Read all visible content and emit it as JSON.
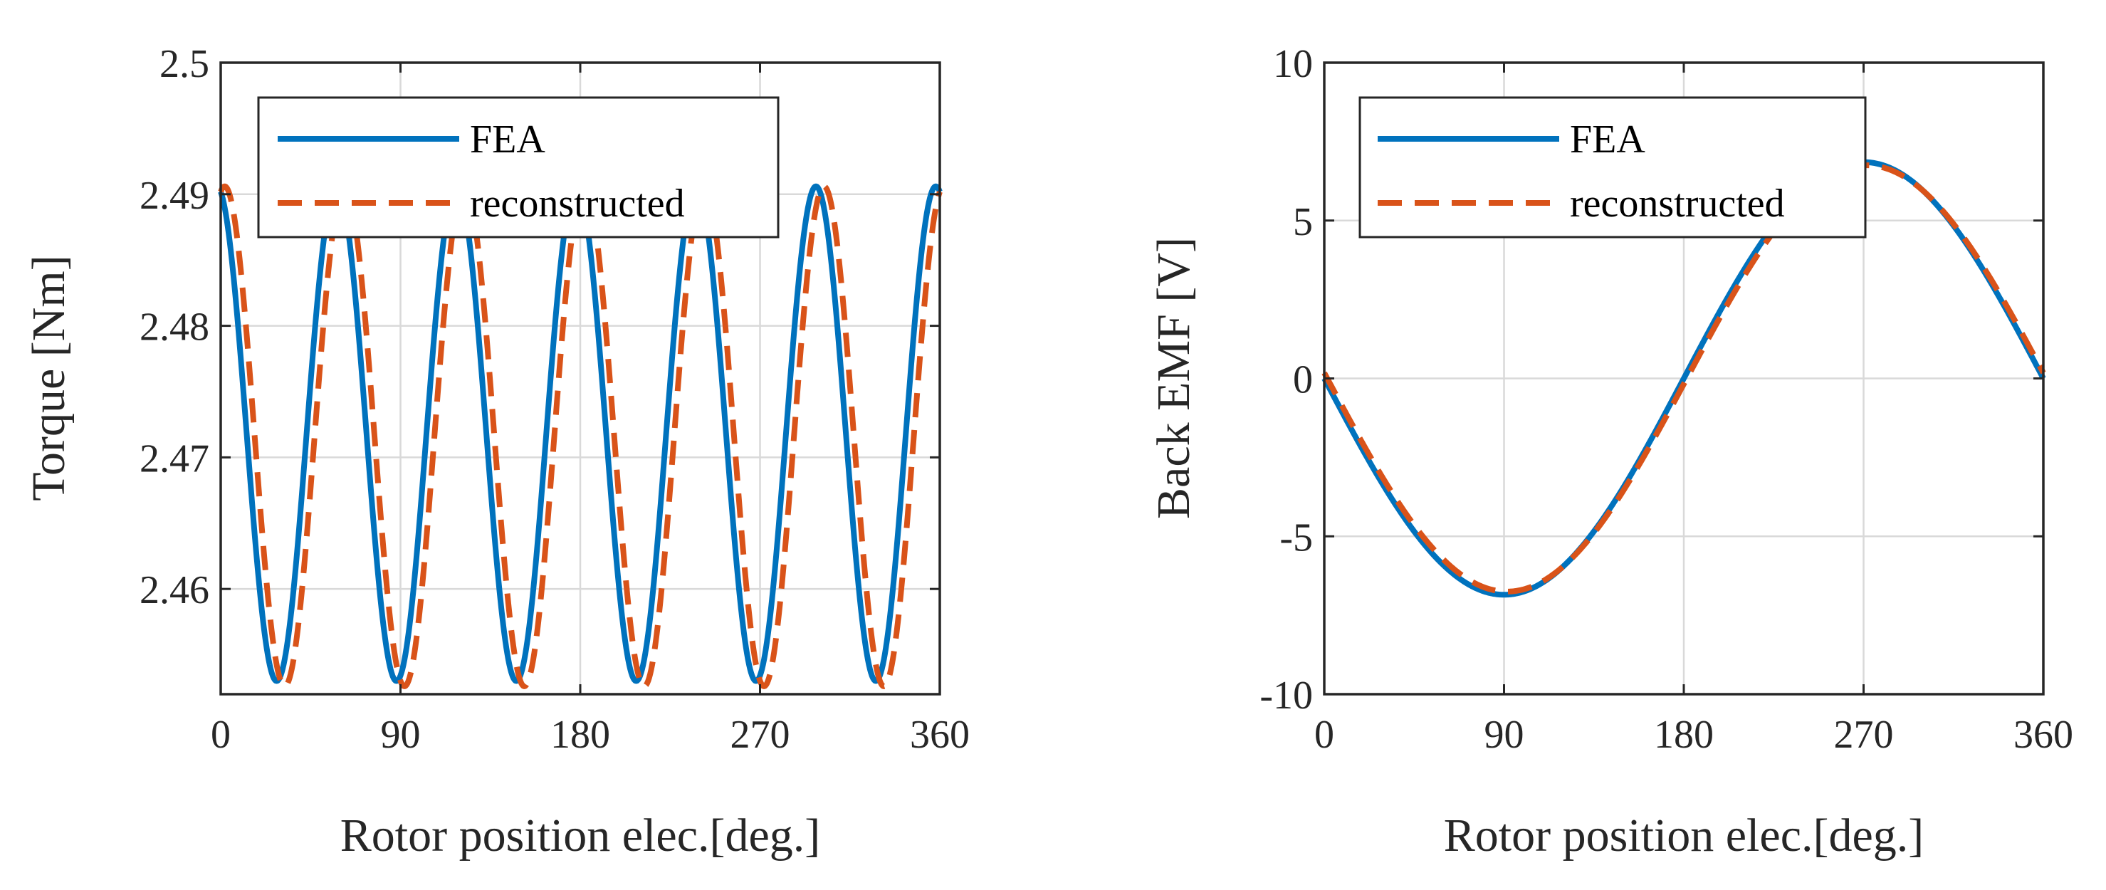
{
  "colors": {
    "fea": "#0072BD",
    "reconstructed": "#D95319",
    "axis": "#262626",
    "grid": "#d9d9d9"
  },
  "chart_data": [
    {
      "type": "line",
      "xlabel": "Rotor position elec.[deg.]",
      "ylabel": "Torque [Nm]",
      "xlim": [
        0,
        360
      ],
      "ylim": [
        2.452,
        2.5
      ],
      "xticks": [
        0,
        90,
        180,
        270,
        360
      ],
      "xtick_labels": [
        "0",
        "90",
        "180",
        "270",
        "360"
      ],
      "yticks": [
        2.46,
        2.47,
        2.48,
        2.49,
        2.5
      ],
      "ytick_labels": [
        "2.46",
        "2.47",
        "2.48",
        "2.49",
        "2.5"
      ],
      "grid": true,
      "legend": {
        "position": "top-left",
        "entries": [
          "FEA",
          "reconstructed"
        ]
      },
      "series": [
        {
          "name": "FEA",
          "style": "solid",
          "function": "cos",
          "mean": 2.4718,
          "amplitude": 0.0188,
          "periods": 6,
          "phase_deg": 2
        },
        {
          "name": "reconstructed",
          "style": "dashed",
          "function": "cos",
          "mean": 2.4716,
          "amplitude": 0.019,
          "periods": 6,
          "phase_deg": -2
        }
      ]
    },
    {
      "type": "line",
      "xlabel": "Rotor position elec.[deg.]",
      "ylabel": "Back EMF [V]",
      "xlim": [
        0,
        360
      ],
      "ylim": [
        -10,
        10
      ],
      "xticks": [
        0,
        90,
        180,
        270,
        360
      ],
      "xtick_labels": [
        "0",
        "90",
        "180",
        "270",
        "360"
      ],
      "yticks": [
        -10,
        -5,
        0,
        5,
        10
      ],
      "ytick_labels": [
        "-10",
        "-5",
        "0",
        "5",
        "10"
      ],
      "grid": true,
      "legend": {
        "position": "top-left",
        "entries": [
          "FEA",
          "reconstructed"
        ]
      },
      "series": [
        {
          "name": "FEA",
          "style": "solid",
          "function": "neg-sin",
          "mean": 0,
          "amplitude": 6.85,
          "periods": 1,
          "phase_deg": 0
        },
        {
          "name": "reconstructed",
          "style": "dashed",
          "function": "neg-sin",
          "mean": 0,
          "amplitude": 6.75,
          "periods": 1,
          "phase_deg": -1.5
        }
      ]
    }
  ]
}
